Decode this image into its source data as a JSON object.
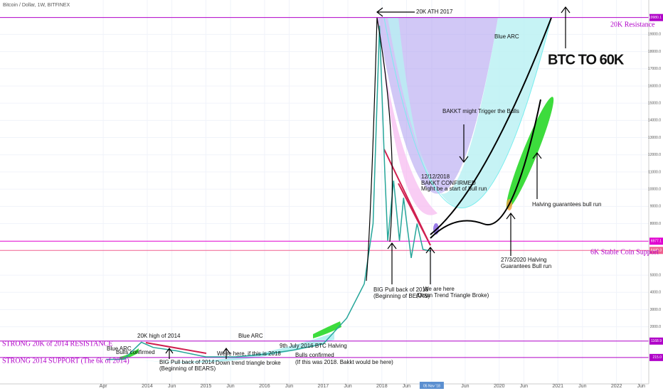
{
  "chart_data": {
    "type": "line",
    "title": "Bitcoin / Dollar, 1W, BITFINEX",
    "xlim": [
      2011.49,
      2022.55
    ],
    "ylim": [
      -1320,
      21000
    ],
    "xticks": [
      {
        "value": 2013.25,
        "label": "Apr"
      },
      2014,
      {
        "value": 2014.42,
        "label": "Jun"
      },
      2015,
      {
        "value": 2015.42,
        "label": "Jun"
      },
      2016,
      {
        "value": 2016.42,
        "label": "Jun"
      },
      2017,
      {
        "value": 2017.42,
        "label": "Jun"
      },
      2018,
      {
        "value": 2018.42,
        "label": "Jun"
      },
      {
        "value": 2018.85,
        "label": "05 Nov '18"
      },
      {
        "value": 2019.42,
        "label": "Jun"
      },
      2020,
      {
        "value": 2020.42,
        "label": "Jun"
      },
      2021,
      {
        "value": 2021.42,
        "label": "Jun"
      },
      2022,
      {
        "value": 2022.42,
        "label": "Jun"
      }
    ],
    "yticks": [
      {
        "value": 2000,
        "label": "2000.0"
      },
      {
        "value": 3000,
        "label": "3000.0"
      },
      {
        "value": 4000,
        "label": "4000.0"
      },
      {
        "value": 5000,
        "label": "5000.0"
      },
      {
        "value": 8000,
        "label": "8000.0"
      },
      {
        "value": 9000,
        "label": "9000.0"
      },
      {
        "value": 10000,
        "label": "10000.0"
      },
      {
        "value": 11000,
        "label": "11000.0"
      },
      {
        "value": 12000,
        "label": "12000.0"
      },
      {
        "value": 13000,
        "label": "13000.0"
      },
      {
        "value": 14000,
        "label": "14000.0"
      },
      {
        "value": 15000,
        "label": "15000.0"
      },
      {
        "value": 16000,
        "label": "16000.0"
      },
      {
        "value": 17000,
        "label": "17000.0"
      },
      {
        "value": 18000,
        "label": "18000.0"
      },
      {
        "value": 19000,
        "label": "19000.0"
      }
    ],
    "grid": true,
    "levels": [
      {
        "value": 19980.1,
        "color": "#b000c8"
      },
      {
        "value": 6977.1,
        "color": "#e000d0"
      },
      {
        "value": 6440.3,
        "color": "#f06090"
      },
      {
        "value": 1168.9,
        "color": "#b000c8"
      },
      {
        "value": {
          "value": 215,
          "label": "215.0"
        },
        "color": "#b000c8"
      }
    ],
    "series": [
      {
        "color": "#26a69a",
        "x": [
          2013.3,
          2013.6,
          2013.9,
          2014.1,
          2014.5,
          2015.0,
          2015.5,
          2016.0,
          2016.5,
          2017.0,
          2017.4,
          2017.7,
          2017.85,
          2017.96,
          2018.05,
          2018.1,
          2018.2,
          2018.3,
          2018.37,
          2018.5,
          2018.6,
          2018.7,
          2018.84
        ],
        "values": [
          100,
          110,
          1100,
          800,
          600,
          250,
          250,
          400,
          650,
          1000,
          2500,
          4500,
          8000,
          19500,
          11000,
          7000,
          10500,
          7000,
          9500,
          6000,
          8000,
          6500,
          6400
        ]
      }
    ],
    "annotations": [
      "20K ATH 2017",
      "Blue ARC",
      "BTC TO 60K",
      "20K Resistance",
      "BAKKT might Trigger the Bulls",
      "12/12/2018",
      "BAKKT CONFIRMED",
      "Might be a start of bull run",
      "Halving guarantees bull run",
      "6K Stable Coin Support",
      "27/3/2020 Halving",
      "Guarantees  Bull run",
      "BIG Pull back of 2018",
      "(Beginning of BEARS)",
      "We are here",
      "(Down Trend Triangle Broke)",
      "20K high of 2014",
      "Blue ARC",
      "9th July 2016 BTC Halving",
      "STRONG 20K of 2014 RESISTANCE",
      "Blue ARC",
      "Bulls confirmed",
      "We're here, if this is 2018",
      "Bulls confirmed",
      "Down trend triangle broke",
      "(If this was 2018. Bakkt would be here)",
      "BIG Pull back of 2014",
      "(Beginning of BEARS)",
      "STRONG 2014 SUPPORT (The 6k of 2014)"
    ]
  }
}
